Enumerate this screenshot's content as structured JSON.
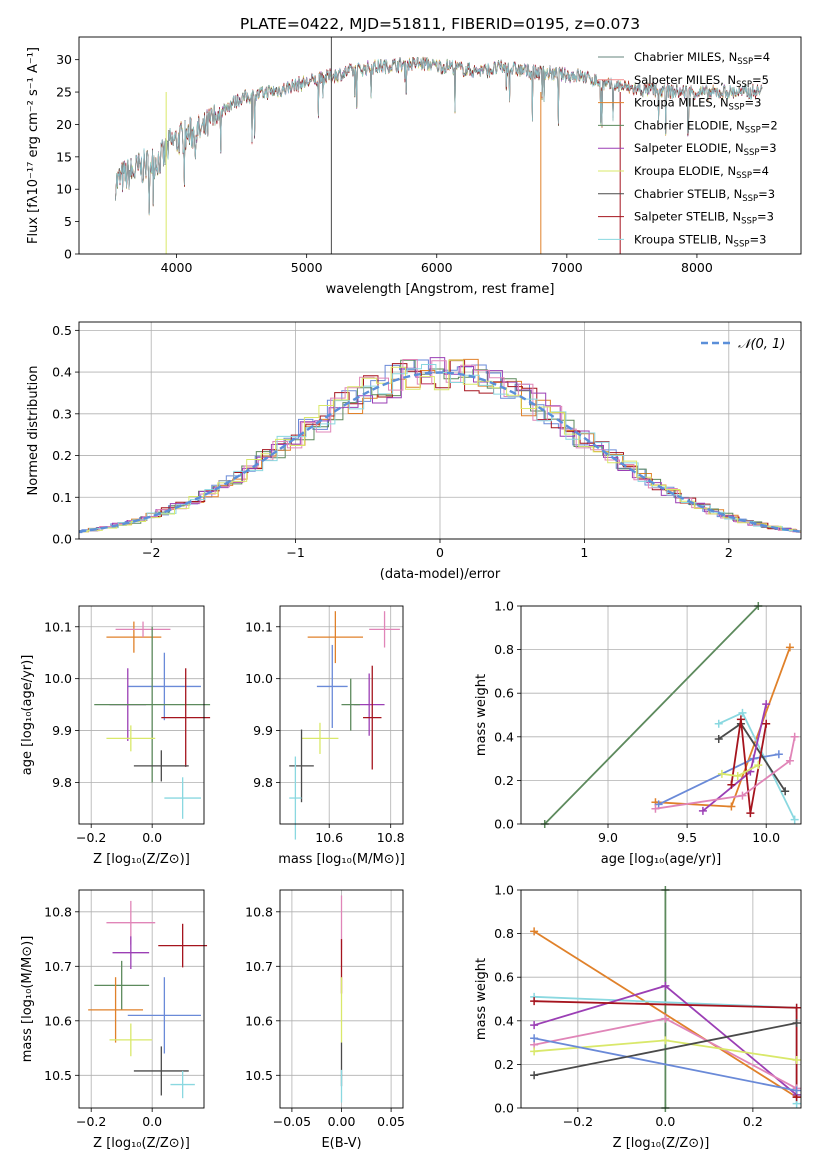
{
  "colors": [
    "#66857c",
    "#f28a8a",
    "#e0812a",
    "#5d8a5d",
    "#9b3fb5",
    "#d9e86a",
    "#4a4a4a",
    "#a5141e",
    "#8ad8e0"
  ],
  "chart_data": [
    {
      "id": "spectrum",
      "type": "line",
      "title": "PLATE=0422, MJD=51811, FIBERID=0195, z=0.073",
      "xlabel": "wavelength [Angstrom, rest frame]",
      "ylabel": "Flux [fλ10⁻¹⁷ erg cm⁻² s⁻¹ A⁻¹]",
      "xlim": [
        3250,
        8800
      ],
      "ylim": [
        0,
        33.5
      ],
      "xticks": [
        4000,
        5000,
        6000,
        7000,
        8000
      ],
      "yticks": [
        0,
        5,
        10,
        15,
        20,
        25,
        30
      ],
      "grid": false,
      "legend_position": "top-right",
      "spectrum_x": [
        3530,
        3600,
        3700,
        3800,
        3900,
        3950,
        4000,
        4100,
        4200,
        4300,
        4400,
        4500,
        4600,
        4700,
        4800,
        4900,
        5000,
        5100,
        5200,
        5300,
        5400,
        5500,
        5600,
        5700,
        5800,
        5900,
        6000,
        6100,
        6200,
        6300,
        6400,
        6500,
        6600,
        6700,
        6800,
        6900,
        7000,
        7100,
        7200,
        7300,
        7400,
        7500,
        7600,
        7700,
        7800,
        7900,
        8000,
        8100,
        8200,
        8300,
        8400,
        8500
      ],
      "spectrum_y": [
        11,
        12,
        13,
        14,
        15,
        17,
        17.5,
        18.5,
        19,
        21,
        23,
        24,
        24.5,
        25,
        25.3,
        26,
        26.5,
        27,
        27.5,
        28,
        28.5,
        28.8,
        29,
        29.2,
        29.3,
        29.4,
        29,
        29,
        28.5,
        28.3,
        28.4,
        28.8,
        28.5,
        28.2,
        28,
        27.8,
        27.6,
        27.5,
        27,
        26,
        26,
        25.5,
        25.3,
        25.2,
        25.1,
        25,
        25,
        24.8,
        25,
        25,
        25,
        25.2
      ],
      "legend": [
        "Chabrier MILES, N_SSP=4",
        "Salpeter MILES, N_SSP=5",
        "Kroupa MILES, N_SSP=3",
        "Chabrier ELODIE, N_SSP=2",
        "Salpeter ELODIE, N_SSP=3",
        "Kroupa ELODIE, N_SSP=4",
        "Chabrier STELIB, N_SSP=3",
        "Salpeter STELIB, N_SSP=3",
        "Kroupa STELIB, N_SSP=3"
      ]
    },
    {
      "id": "residuals",
      "type": "step",
      "xlabel": "(data-model)/error",
      "ylabel": "Normed distribution",
      "xlim": [
        -2.5,
        2.5
      ],
      "ylim": [
        0,
        0.52
      ],
      "xticks": [
        -2,
        -1,
        0,
        1,
        2
      ],
      "yticks": [
        0.0,
        0.1,
        0.2,
        0.3,
        0.4,
        0.5
      ],
      "grid": true,
      "legend": [
        "𝒩(0, 1)"
      ],
      "legend_position": "top-right",
      "bin_width": 0.1,
      "hist_colors": [
        "#6a8ad8",
        "#e0812a",
        "#5d8a5d",
        "#a5141e",
        "#9b3fb5",
        "#e085b8",
        "#8ad8e0",
        "#d9e86a"
      ]
    },
    {
      "id": "age-vs-z",
      "type": "errorbar",
      "xlabel": "Z [log₁₀(Z/Z⊙)]",
      "ylabel": "age  [log₁₀(age/yr)]",
      "xlim": [
        -0.24,
        0.17
      ],
      "ylim": [
        9.72,
        10.14
      ],
      "xticks": [
        -0.2,
        0.0
      ],
      "yticks": [
        9.8,
        9.9,
        10.0,
        10.1
      ],
      "grid": true,
      "points": [
        {
          "x": -0.06,
          "y": 10.08,
          "xerr": 0.09,
          "yerr": 0.03,
          "color": "#e0812a"
        },
        {
          "x": -0.03,
          "y": 10.095,
          "xerr": 0.09,
          "yerr": 0.015,
          "color": "#e085b8"
        },
        {
          "x": 0.04,
          "y": 9.985,
          "xerr": 0.12,
          "yerr": 0.065,
          "color": "#6a8ad8"
        },
        {
          "x": -0.08,
          "y": 9.95,
          "xerr": 0.06,
          "yerr": 0.07,
          "color": "#9b3fb5"
        },
        {
          "x": 0.0,
          "y": 9.95,
          "xerr": 0.19,
          "yerr": 0.15,
          "color": "#5d8a5d"
        },
        {
          "x": 0.11,
          "y": 9.925,
          "xerr": 0.08,
          "yerr": 0.095,
          "color": "#a5141e"
        },
        {
          "x": -0.07,
          "y": 9.885,
          "xerr": 0.08,
          "yerr": 0.025,
          "color": "#d9e86a"
        },
        {
          "x": 0.03,
          "y": 9.832,
          "xerr": 0.09,
          "yerr": 0.03,
          "color": "#4a4a4a"
        },
        {
          "x": 0.1,
          "y": 9.77,
          "xerr": 0.06,
          "yerr": 0.04,
          "color": "#8ad8e0"
        }
      ]
    },
    {
      "id": "age-vs-mass",
      "type": "errorbar",
      "xlabel": "mass [log₁₀(M/M⊙)]",
      "ylabel": "",
      "xlim": [
        10.44,
        10.84
      ],
      "ylim": [
        9.72,
        10.14
      ],
      "xticks": [
        10.6,
        10.8
      ],
      "yticks": [
        9.8,
        9.9,
        10.0,
        10.1
      ],
      "grid": true,
      "points": [
        {
          "x": 10.62,
          "y": 10.08,
          "xerr": 0.09,
          "yerr": 0.05,
          "color": "#e0812a"
        },
        {
          "x": 10.78,
          "y": 10.095,
          "xerr": 0.05,
          "yerr": 0.035,
          "color": "#e085b8"
        },
        {
          "x": 10.61,
          "y": 9.985,
          "xerr": 0.05,
          "yerr": 0.08,
          "color": "#6a8ad8"
        },
        {
          "x": 10.73,
          "y": 9.95,
          "xerr": 0.05,
          "yerr": 0.06,
          "color": "#9b3fb5"
        },
        {
          "x": 10.67,
          "y": 9.95,
          "xerr": 0.03,
          "yerr": 0.05,
          "color": "#5d8a5d"
        },
        {
          "x": 10.74,
          "y": 9.925,
          "xerr": 0.03,
          "yerr": 0.1,
          "color": "#a5141e"
        },
        {
          "x": 10.57,
          "y": 9.885,
          "xerr": 0.06,
          "yerr": 0.03,
          "color": "#d9e86a"
        },
        {
          "x": 10.51,
          "y": 9.832,
          "xerr": 0.04,
          "yerr": 0.07,
          "color": "#4a4a4a"
        },
        {
          "x": 10.49,
          "y": 9.77,
          "xerr": 0.02,
          "yerr": 0.08,
          "color": "#8ad8e0"
        }
      ]
    },
    {
      "id": "mass-weight-vs-age",
      "type": "line",
      "xlabel": "age  [log₁₀(age/yr)]",
      "ylabel": "mass weight",
      "xlim": [
        8.45,
        10.22
      ],
      "ylim": [
        0.0,
        1.0
      ],
      "xticks": [
        9.0,
        9.5,
        10.0
      ],
      "yticks": [
        0.0,
        0.2,
        0.4,
        0.6,
        0.8,
        1.0
      ],
      "grid": true,
      "series": [
        {
          "color": "#5d8a5d",
          "x": [
            8.6,
            9.95
          ],
          "y": [
            0.0,
            1.0
          ]
        },
        {
          "color": "#e0812a",
          "x": [
            9.3,
            9.78,
            10.15
          ],
          "y": [
            0.1,
            0.08,
            0.81
          ]
        },
        {
          "color": "#8ad8e0",
          "x": [
            9.7,
            9.85,
            10.18
          ],
          "y": [
            0.46,
            0.51,
            0.02
          ]
        },
        {
          "color": "#6a8ad8",
          "x": [
            9.32,
            9.92,
            10.08
          ],
          "y": [
            0.09,
            0.3,
            0.32
          ]
        },
        {
          "color": "#4a4a4a",
          "x": [
            9.7,
            9.84,
            10.12
          ],
          "y": [
            0.39,
            0.46,
            0.15
          ]
        },
        {
          "color": "#9b3fb5",
          "x": [
            9.6,
            9.9,
            10.0
          ],
          "y": [
            0.06,
            0.24,
            0.55
          ]
        },
        {
          "color": "#a5141e",
          "x": [
            9.78,
            9.84,
            9.9,
            10.0
          ],
          "y": [
            0.18,
            0.48,
            0.05,
            0.46
          ]
        },
        {
          "color": "#d9e86a",
          "x": [
            9.72,
            9.82,
            9.95
          ],
          "y": [
            0.23,
            0.22,
            0.27
          ]
        },
        {
          "color": "#e085b8",
          "x": [
            9.3,
            9.85,
            10.15,
            10.18
          ],
          "y": [
            0.07,
            0.13,
            0.29,
            0.4
          ]
        }
      ]
    },
    {
      "id": "mass-vs-z",
      "type": "errorbar",
      "xlabel": "Z [log₁₀(Z/Z⊙)]",
      "ylabel": "mass [log₁₀(M/M⊙)]",
      "xlim": [
        -0.24,
        0.17
      ],
      "ylim": [
        10.44,
        10.84
      ],
      "xticks": [
        -0.2,
        0.0
      ],
      "yticks": [
        10.5,
        10.6,
        10.7,
        10.8
      ],
      "grid": true,
      "points": [
        {
          "x": -0.07,
          "y": 10.78,
          "xerr": 0.08,
          "yerr": 0.04,
          "color": "#e085b8"
        },
        {
          "x": 0.1,
          "y": 10.738,
          "xerr": 0.08,
          "yerr": 0.04,
          "color": "#a5141e"
        },
        {
          "x": -0.07,
          "y": 10.725,
          "xerr": 0.06,
          "yerr": 0.03,
          "color": "#9b3fb5"
        },
        {
          "x": -0.1,
          "y": 10.665,
          "xerr": 0.09,
          "yerr": 0.045,
          "color": "#5d8a5d"
        },
        {
          "x": -0.12,
          "y": 10.62,
          "xerr": 0.09,
          "yerr": 0.06,
          "color": "#e0812a"
        },
        {
          "x": 0.04,
          "y": 10.61,
          "xerr": 0.12,
          "yerr": 0.07,
          "color": "#6a8ad8"
        },
        {
          "x": -0.07,
          "y": 10.565,
          "xerr": 0.07,
          "yerr": 0.03,
          "color": "#d9e86a"
        },
        {
          "x": 0.03,
          "y": 10.508,
          "xerr": 0.09,
          "yerr": 0.045,
          "color": "#4a4a4a"
        },
        {
          "x": 0.1,
          "y": 10.483,
          "xerr": 0.04,
          "yerr": 0.025,
          "color": "#8ad8e0"
        }
      ]
    },
    {
      "id": "mass-vs-ebv",
      "type": "errorbar",
      "xlabel": "E(B-V)",
      "ylabel": "",
      "xlim": [
        -0.062,
        0.062
      ],
      "ylim": [
        10.44,
        10.84
      ],
      "xticks": [
        -0.05,
        0.0,
        0.05
      ],
      "yticks": [
        10.5,
        10.6,
        10.7,
        10.8
      ],
      "grid": true,
      "points": [
        {
          "x": 0.0,
          "y": 10.78,
          "xerr": 0.0,
          "yerr": 0.05,
          "color": "#e085b8"
        },
        {
          "x": 0.0,
          "y": 10.7,
          "xerr": 0.0,
          "yerr": 0.05,
          "color": "#a5141e"
        },
        {
          "x": 0.0,
          "y": 10.62,
          "xerr": 0.0,
          "yerr": 0.06,
          "color": "#d9e86a"
        },
        {
          "x": 0.0,
          "y": 10.52,
          "xerr": 0.0,
          "yerr": 0.04,
          "color": "#4a4a4a"
        },
        {
          "x": 0.0,
          "y": 10.48,
          "xerr": 0.0,
          "yerr": 0.03,
          "color": "#8ad8e0"
        }
      ]
    },
    {
      "id": "mass-weight-vs-z",
      "type": "line",
      "xlabel": "Z [log₁₀(Z/Z⊙)]",
      "ylabel": "mass weight",
      "xlim": [
        -0.33,
        0.31
      ],
      "ylim": [
        0.0,
        1.0
      ],
      "xticks": [
        -0.2,
        0.0,
        0.2
      ],
      "yticks": [
        0.0,
        0.2,
        0.4,
        0.6,
        0.8,
        1.0
      ],
      "grid": true,
      "series": [
        {
          "color": "#5d8a5d",
          "x": [
            0.0,
            0.0
          ],
          "y": [
            0.0,
            1.0
          ]
        },
        {
          "color": "#e0812a",
          "x": [
            -0.3,
            0.3
          ],
          "y": [
            0.81,
            0.05
          ]
        },
        {
          "color": "#8ad8e0",
          "x": [
            -0.3,
            0.3,
            0.3
          ],
          "y": [
            0.51,
            0.46,
            0.02
          ]
        },
        {
          "color": "#9b3fb5",
          "x": [
            -0.3,
            0.0,
            0.3
          ],
          "y": [
            0.38,
            0.56,
            0.06
          ]
        },
        {
          "color": "#a5141e",
          "x": [
            -0.3,
            0.3,
            0.3
          ],
          "y": [
            0.49,
            0.46,
            0.05
          ]
        },
        {
          "color": "#e085b8",
          "x": [
            -0.3,
            0.0,
            0.3
          ],
          "y": [
            0.29,
            0.41,
            0.09
          ]
        },
        {
          "color": "#d9e86a",
          "x": [
            -0.3,
            0.0,
            0.3
          ],
          "y": [
            0.26,
            0.31,
            0.22
          ]
        },
        {
          "color": "#6a8ad8",
          "x": [
            -0.3,
            0.3
          ],
          "y": [
            0.32,
            0.08
          ]
        },
        {
          "color": "#4a4a4a",
          "x": [
            -0.3,
            0.3
          ],
          "y": [
            0.15,
            0.39
          ]
        }
      ]
    }
  ]
}
